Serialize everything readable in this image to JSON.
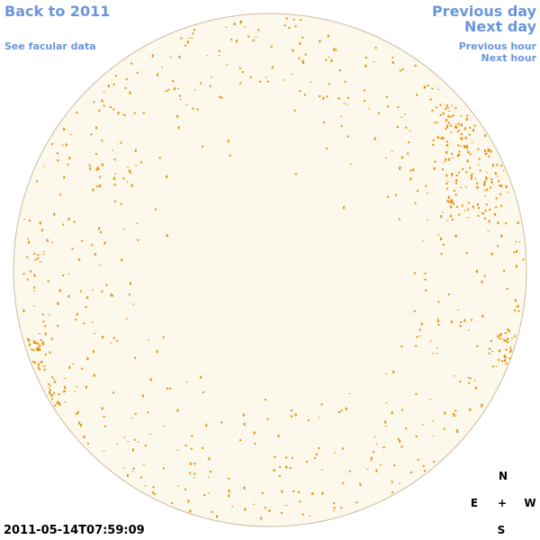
{
  "nav": {
    "back": "Back to 2011",
    "facular": "See facular data",
    "previous_day": "Previous day",
    "next_day": "Next day",
    "previous_hour": "Previous hour",
    "next_hour": "Next hour"
  },
  "timestamp": "2011-05-14T07:59:09",
  "compass": {
    "north": "N",
    "east": "E",
    "center": "+",
    "west": "W",
    "south": "S"
  }
}
